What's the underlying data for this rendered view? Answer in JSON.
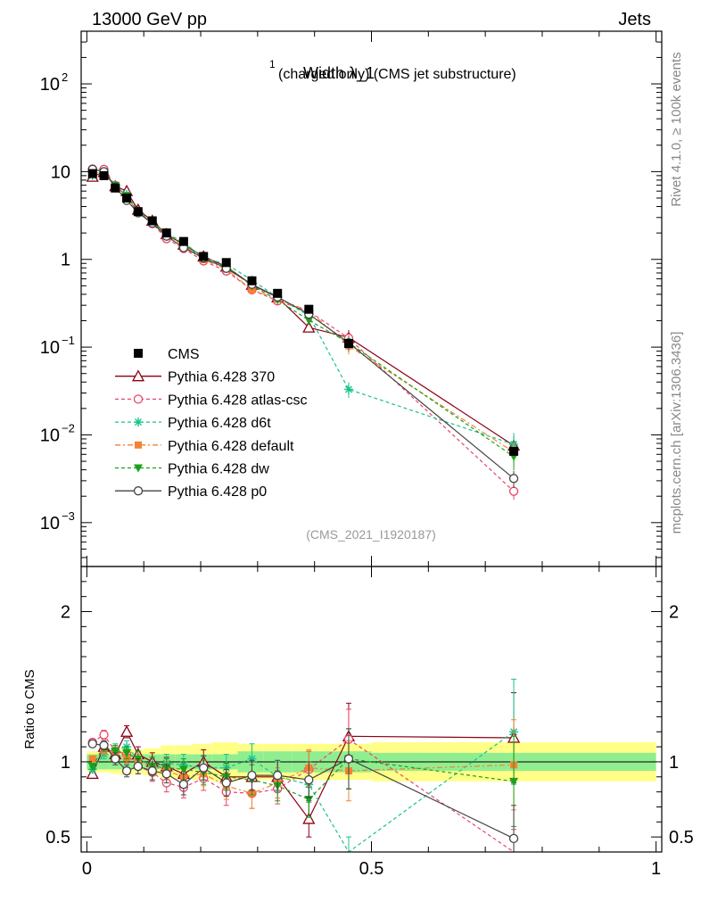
{
  "header": {
    "left": "13000 GeV pp",
    "right": "Jets"
  },
  "side": {
    "rivet": "Rivet 4.1.0, ≥ 100k events",
    "mcplots": "mcplots.cern.ch [arXiv:1306.3436]"
  },
  "chart_data": {
    "type": "scatter",
    "title_main": "Width λ_1",
    "title_sup": "1",
    "title_rest": "(charged only) (CMS jet substructure)",
    "analysis": "(CMS_2021_I1920187)",
    "ylabel_ratio": "Ratio to CMS",
    "xlim": [
      -0.01,
      1.01
    ],
    "ylim_main_log10": [
      -3.5,
      2.6
    ],
    "ylim_ratio": [
      0.4,
      2.3
    ],
    "x_ticks": [
      "0",
      "0.5",
      "1"
    ],
    "y_ticks_main": [
      {
        "v": 100,
        "base": "10",
        "exp": "2"
      },
      {
        "v": 10,
        "base": "10",
        "exp": ""
      },
      {
        "v": 1,
        "base": "1",
        "exp": ""
      },
      {
        "v": 0.1,
        "base": "10",
        "exp": "−1"
      },
      {
        "v": 0.01,
        "base": "10",
        "exp": "−2"
      },
      {
        "v": 0.001,
        "base": "10",
        "exp": "−3"
      }
    ],
    "y_ticks_ratio": [
      {
        "v": 2,
        "label": "2"
      },
      {
        "v": 1,
        "label": "1"
      },
      {
        "v": 0.5,
        "label": "0.5"
      }
    ],
    "x": [
      0.01,
      0.03,
      0.05,
      0.07,
      0.09,
      0.115,
      0.14,
      0.17,
      0.205,
      0.245,
      0.29,
      0.335,
      0.39,
      0.46,
      0.75
    ],
    "bin_edges": [
      0.0,
      0.02,
      0.04,
      0.06,
      0.08,
      0.1,
      0.13,
      0.155,
      0.185,
      0.22,
      0.265,
      0.31,
      0.36,
      0.42,
      0.5,
      1.0
    ],
    "band_stat": [
      0.05,
      0.05,
      0.05,
      0.05,
      0.05,
      0.05,
      0.05,
      0.05,
      0.05,
      0.05,
      0.07,
      0.07,
      0.07,
      0.07,
      0.06
    ],
    "band_total": [
      0.07,
      0.07,
      0.08,
      0.09,
      0.08,
      0.09,
      0.11,
      0.11,
      0.12,
      0.13,
      0.12,
      0.12,
      0.12,
      0.12,
      0.13
    ],
    "cms": [
      9.5,
      9.0,
      6.5,
      5.0,
      3.5,
      2.75,
      2.0,
      1.6,
      1.08,
      0.92,
      0.57,
      0.41,
      0.27,
      0.11,
      0.0065
    ],
    "series": [
      {
        "name": "Pythia 6.428 370",
        "color": "#8b0015",
        "dash": "",
        "marker": "triangle-open",
        "ratio": [
          0.92,
          1.1,
          1.05,
          1.2,
          1.05,
          1.0,
          0.97,
          0.92,
          1.0,
          0.9,
          0.9,
          0.9,
          0.62,
          1.17,
          1.16
        ],
        "err": [
          0.02,
          0.03,
          0.04,
          0.04,
          0.05,
          0.06,
          0.06,
          0.07,
          0.08,
          0.09,
          0.1,
          0.1,
          0.12,
          0.22,
          0.3
        ]
      },
      {
        "name": "Pythia 6.428 atlas-csc",
        "color": "#e8466a",
        "dash": "4,3",
        "marker": "circle-open",
        "ratio": [
          1.13,
          1.18,
          1.07,
          1.05,
          0.97,
          0.93,
          0.86,
          0.83,
          0.89,
          0.8,
          0.79,
          0.82,
          0.95,
          1.15,
          0.35
        ],
        "err": [
          0.02,
          0.03,
          0.04,
          0.04,
          0.05,
          0.06,
          0.06,
          0.07,
          0.08,
          0.09,
          0.1,
          0.1,
          0.12,
          0.2,
          0.2
        ]
      },
      {
        "name": "Pythia 6.428 d6t",
        "color": "#18c38e",
        "dash": "4,3",
        "marker": "star",
        "ratio": [
          0.95,
          1.05,
          1.08,
          1.1,
          1.02,
          0.97,
          0.99,
          0.98,
          0.96,
          0.96,
          1.02,
          0.9,
          0.85,
          0.3,
          1.2
        ],
        "err": [
          0.02,
          0.03,
          0.04,
          0.04,
          0.05,
          0.06,
          0.06,
          0.07,
          0.08,
          0.09,
          0.1,
          0.1,
          0.12,
          0.2,
          0.35
        ]
      },
      {
        "name": "Pythia 6.428 default",
        "color": "#f58232",
        "dash": "6,3,2,3",
        "marker": "square",
        "ratio": [
          1.02,
          1.08,
          1.06,
          1.03,
          1.0,
          0.97,
          0.94,
          0.9,
          0.92,
          0.84,
          0.79,
          0.86,
          0.96,
          0.94,
          0.98
        ],
        "err": [
          0.02,
          0.03,
          0.04,
          0.04,
          0.05,
          0.06,
          0.06,
          0.07,
          0.08,
          0.09,
          0.1,
          0.1,
          0.12,
          0.2,
          0.3
        ]
      },
      {
        "name": "Pythia 6.428 dw",
        "color": "#1aa11a",
        "dash": "4,3",
        "marker": "triangle-down",
        "ratio": [
          0.97,
          1.1,
          1.07,
          1.06,
          1.02,
          0.97,
          0.96,
          0.95,
          0.93,
          0.9,
          0.88,
          0.84,
          0.75,
          1.02,
          0.87
        ],
        "err": [
          0.02,
          0.03,
          0.04,
          0.04,
          0.05,
          0.06,
          0.06,
          0.07,
          0.08,
          0.09,
          0.1,
          0.1,
          0.12,
          0.2,
          0.3
        ]
      },
      {
        "name": "Pythia 6.428 p0",
        "color": "#444444",
        "dash": "",
        "marker": "circle-open",
        "ratio": [
          1.12,
          1.11,
          1.02,
          0.94,
          0.97,
          0.94,
          0.92,
          0.85,
          0.96,
          0.86,
          0.91,
          0.91,
          0.88,
          1.02,
          0.49
        ],
        "err": [
          0.02,
          0.03,
          0.04,
          0.04,
          0.05,
          0.06,
          0.06,
          0.07,
          0.08,
          0.09,
          0.1,
          0.1,
          0.12,
          0.2,
          0.22
        ]
      }
    ],
    "legend_data_label": "CMS",
    "legend_position": "center-left"
  }
}
